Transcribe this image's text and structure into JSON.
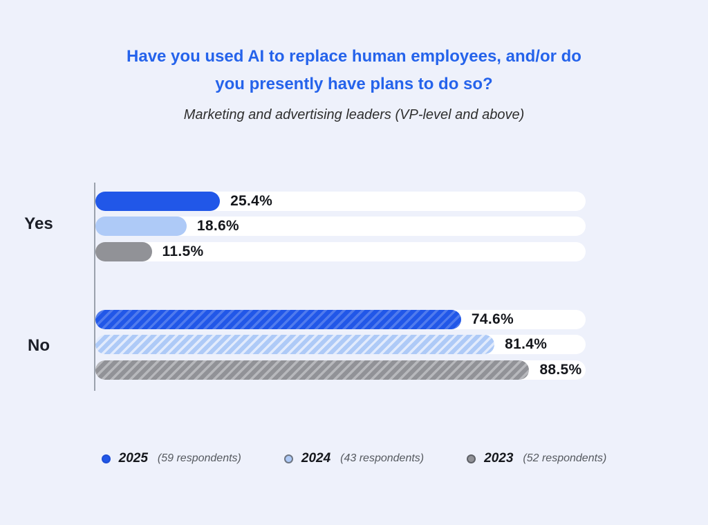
{
  "header": {
    "title_line1": "Have you used AI to replace human employees, and/or do",
    "title_line2": "you presently have plans to do so?",
    "subtitle": "Marketing and advertising leaders (VP-level and above)"
  },
  "chart_data": {
    "type": "bar",
    "orientation": "horizontal",
    "categories": [
      "Yes",
      "No"
    ],
    "series": [
      {
        "name": "2025",
        "color": "#2256E8",
        "stripe_color": "#507BED",
        "values": [
          25.4,
          74.6
        ]
      },
      {
        "name": "2024",
        "color": "#AECAF7",
        "stripe_color": "#E2EBFC",
        "values": [
          18.6,
          81.4
        ]
      },
      {
        "name": "2023",
        "color": "#919297",
        "stripe_color": "#B7B8BC",
        "values": [
          11.5,
          88.5
        ]
      }
    ],
    "value_suffix": "%",
    "xlim": [
      0,
      100
    ],
    "grid": false,
    "legend_position": "bottom",
    "pattern": "bars for the 'No' category are diagonally striped, 'Yes' bars are solid"
  },
  "legend": {
    "notes": [
      "(59 respondents)",
      "(43 respondents)",
      "(52 respondents)"
    ]
  },
  "theme": {
    "background": "#EEF1FB",
    "track": "#FFFFFF",
    "title_color": "#2563EB",
    "axis_color": "#9AA1AC"
  }
}
